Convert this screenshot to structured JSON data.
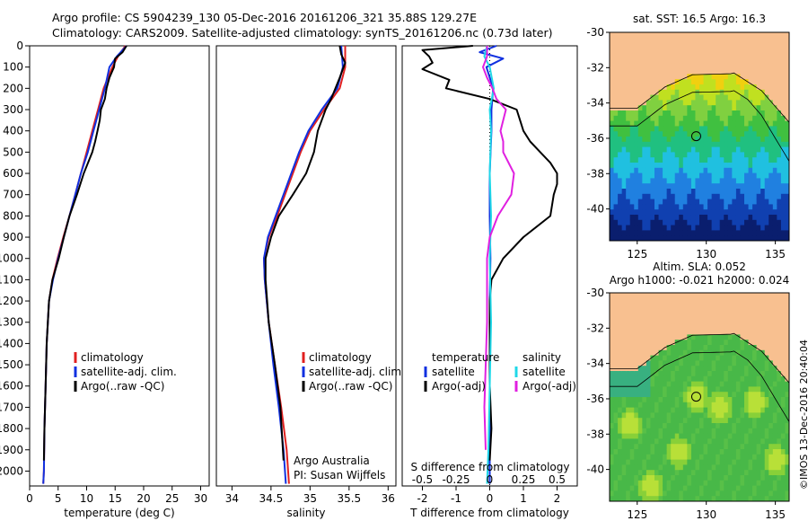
{
  "header": {
    "line1": "Argo profile: CS 5904239_130 05-Dec-2016 20161206_321 35.88S 129.27E",
    "line2": "Climatology: CARS2009. Satellite-adjusted climatology: synTS_20161206.nc (0.73d later)"
  },
  "watermark": "©IMOS 13-Dec-2016 20:40:04",
  "credit": {
    "org": "Argo Australia",
    "pi": "PI: Susan Wijffels"
  },
  "colors": {
    "climatology": "#e02020",
    "satellite": "#1030e0",
    "argo": "#000000",
    "sal_sat": "#20d8e8",
    "sal_argo": "#e020e0",
    "land": "#f8c090"
  },
  "chart_data": [
    {
      "type": "line",
      "xlabel": "temperature (deg C)",
      "ylabel": "",
      "xlim": [
        0,
        31.5
      ],
      "ylim": [
        2070,
        0
      ],
      "xticks": [
        0,
        5,
        10,
        15,
        20,
        25,
        30
      ],
      "yticks": [
        0,
        100,
        200,
        300,
        400,
        500,
        600,
        700,
        800,
        900,
        1000,
        1100,
        1200,
        1300,
        1400,
        1500,
        1600,
        1700,
        1800,
        1900,
        2000
      ],
      "legend": [
        "climatology",
        "satellite-adj. clim.",
        "Argo(..raw -QC)"
      ],
      "series": [
        {
          "name": "climatology",
          "color": "#e02020",
          "depth": [
            0,
            50,
            100,
            200,
            300,
            400,
            500,
            600,
            700,
            800,
            900,
            1000,
            1100,
            1200,
            1400,
            1600,
            1800,
            2000,
            2060
          ],
          "values": [
            16.8,
            15.5,
            14.5,
            13.0,
            12.0,
            11.0,
            10.0,
            9.0,
            8.0,
            7.0,
            5.9,
            4.9,
            4.0,
            3.4,
            3.0,
            2.8,
            2.6,
            2.5,
            2.4
          ]
        },
        {
          "name": "satellite-adj. clim.",
          "color": "#1030e0",
          "depth": [
            0,
            50,
            100,
            200,
            300,
            400,
            500,
            600,
            700,
            800,
            900,
            1000,
            1100,
            1200,
            1400,
            1600,
            1800,
            2000,
            2060
          ],
          "values": [
            17.0,
            15.3,
            14.0,
            13.2,
            12.2,
            11.2,
            10.2,
            9.0,
            8.0,
            7.0,
            6.0,
            5.0,
            4.1,
            3.4,
            3.0,
            2.8,
            2.6,
            2.5,
            2.4
          ]
        },
        {
          "name": "Argo(..raw -QC)",
          "color": "#000000",
          "depth": [
            0,
            30,
            60,
            100,
            150,
            200,
            250,
            300,
            350,
            400,
            450,
            500,
            600,
            700,
            800,
            900,
            1000,
            1100,
            1200,
            1400,
            1600,
            1800,
            1950
          ],
          "values": [
            17.0,
            16.3,
            15.0,
            14.8,
            14.0,
            13.5,
            13.2,
            12.5,
            12.3,
            11.9,
            11.5,
            11.0,
            9.5,
            8.3,
            7.0,
            6.0,
            5.1,
            4.0,
            3.4,
            3.0,
            2.8,
            2.6,
            2.5
          ]
        }
      ]
    },
    {
      "type": "line",
      "xlabel": "salinity",
      "ylabel": "",
      "xlim": [
        33.8,
        36.1
      ],
      "ylim": [
        2070,
        0
      ],
      "xticks": [
        34,
        34.5,
        35,
        35.5,
        36
      ],
      "legend": [
        "climatology",
        "satellite-adj. clim.",
        "Argo(..raw -QC)"
      ],
      "series": [
        {
          "name": "climatology",
          "color": "#e02020",
          "depth": [
            0,
            100,
            200,
            300,
            400,
            500,
            600,
            700,
            800,
            900,
            1000,
            1100,
            1300,
            1500,
            1700,
            1900,
            2060
          ],
          "values": [
            35.45,
            35.45,
            35.38,
            35.18,
            35.0,
            34.88,
            34.78,
            34.68,
            34.58,
            34.47,
            34.41,
            34.42,
            34.47,
            34.55,
            34.63,
            34.7,
            34.73
          ]
        },
        {
          "name": "satellite-adj. clim.",
          "color": "#1030e0",
          "depth": [
            0,
            100,
            200,
            300,
            400,
            500,
            600,
            700,
            800,
            900,
            1000,
            1100,
            1300,
            1500,
            1700,
            1900,
            2060
          ],
          "values": [
            35.4,
            35.42,
            35.35,
            35.15,
            34.98,
            34.86,
            34.76,
            34.66,
            34.56,
            34.46,
            34.41,
            34.42,
            34.47,
            34.53,
            34.6,
            34.66,
            34.69
          ]
        },
        {
          "name": "Argo(..raw -QC)",
          "color": "#000000",
          "depth": [
            0,
            40,
            80,
            150,
            250,
            300,
            400,
            500,
            600,
            700,
            800,
            900,
            1000,
            1100,
            1300,
            1500,
            1700,
            1950
          ],
          "values": [
            35.38,
            35.4,
            35.45,
            35.38,
            35.27,
            35.2,
            35.1,
            35.05,
            34.95,
            34.78,
            34.6,
            34.5,
            34.43,
            34.43,
            34.47,
            34.55,
            34.62,
            34.66
          ]
        }
      ]
    },
    {
      "type": "line",
      "xlabel": "T difference from climatology",
      "xlabel_top": "S difference from climatology",
      "xlim": [
        -2.6,
        2.6
      ],
      "ylim": [
        2070,
        0
      ],
      "xticks": [
        -2,
        -1,
        0,
        1,
        2
      ],
      "xticks_sal": [
        "-0.5",
        "-0.25",
        "0",
        "0.25",
        "0.5"
      ],
      "legend_headers": [
        "temperature",
        "salinity"
      ],
      "legend": [
        "satellite",
        "Argo(-adj)",
        "satellite",
        "Argo(-adj)"
      ],
      "series": [
        {
          "name": "temperature satellite",
          "color": "#1030e0",
          "depth": [
            0,
            30,
            60,
            100,
            200,
            300,
            400,
            600,
            800,
            1000,
            1200,
            1500,
            1800,
            2060
          ],
          "values": [
            0.2,
            -0.3,
            0.4,
            -0.1,
            0.1,
            0.05,
            0.05,
            0.0,
            0.0,
            0.02,
            0.0,
            0.0,
            0.0,
            0.0
          ]
        },
        {
          "name": "temperature Argo(-adj)",
          "color": "#000000",
          "depth": [
            0,
            20,
            50,
            80,
            110,
            160,
            200,
            250,
            300,
            350,
            400,
            450,
            500,
            550,
            600,
            650,
            700,
            800,
            900,
            1000,
            1100,
            1200,
            1400,
            1600,
            1800,
            1950
          ],
          "values": [
            -0.5,
            -2.0,
            -1.8,
            -1.7,
            -2.0,
            -1.2,
            -1.3,
            0.0,
            0.8,
            0.9,
            1.0,
            1.2,
            1.5,
            1.8,
            2.0,
            2.0,
            1.9,
            1.8,
            1.0,
            0.4,
            0.05,
            0.0,
            0.0,
            0.0,
            0.05,
            0.0
          ]
        },
        {
          "name": "salinity satellite",
          "color": "#20d8e8",
          "depth": [
            0,
            50,
            100,
            200,
            300,
            400,
            600,
            800,
            1000,
            1300,
            1600,
            1900,
            2060
          ],
          "values": [
            -0.02,
            -0.04,
            0.0,
            0.03,
            0.0,
            0.01,
            0.0,
            0.01,
            0.0,
            0.01,
            0.0,
            -0.01,
            -0.02
          ]
        },
        {
          "name": "salinity Argo(-adj)",
          "color": "#e020e0",
          "depth": [
            0,
            50,
            100,
            150,
            200,
            250,
            300,
            350,
            400,
            450,
            500,
            600,
            700,
            800,
            900,
            1000,
            1100,
            1300,
            1500,
            1700,
            1900
          ],
          "values": [
            -0.02,
            -0.02,
            -0.05,
            -0.02,
            0.02,
            0.05,
            0.12,
            0.1,
            0.08,
            0.1,
            0.1,
            0.18,
            0.16,
            0.06,
            0.0,
            -0.02,
            -0.02,
            -0.02,
            -0.03,
            -0.04,
            -0.03
          ]
        }
      ]
    },
    {
      "type": "heatmap",
      "title": "sat. SST: 16.5 Argo: 16.3",
      "xlim": [
        123,
        136
      ],
      "ylim": [
        -41.8,
        -30
      ],
      "xticks": [
        125,
        130,
        135
      ],
      "yticks": [
        -30,
        -32,
        -34,
        -36,
        -38,
        -40
      ],
      "marker": [
        129.27,
        -35.88
      ]
    },
    {
      "type": "heatmap",
      "title": "Altim. SLA: 0.052",
      "subtitle": "Argo h1000: -0.021 h2000: 0.024",
      "xlim": [
        123,
        136
      ],
      "ylim": [
        -41.8,
        -30
      ],
      "xticks": [
        125,
        130,
        135
      ],
      "yticks": [
        -30,
        -32,
        -34,
        -36,
        -38,
        -40
      ],
      "marker": [
        129.27,
        -35.88
      ]
    }
  ]
}
